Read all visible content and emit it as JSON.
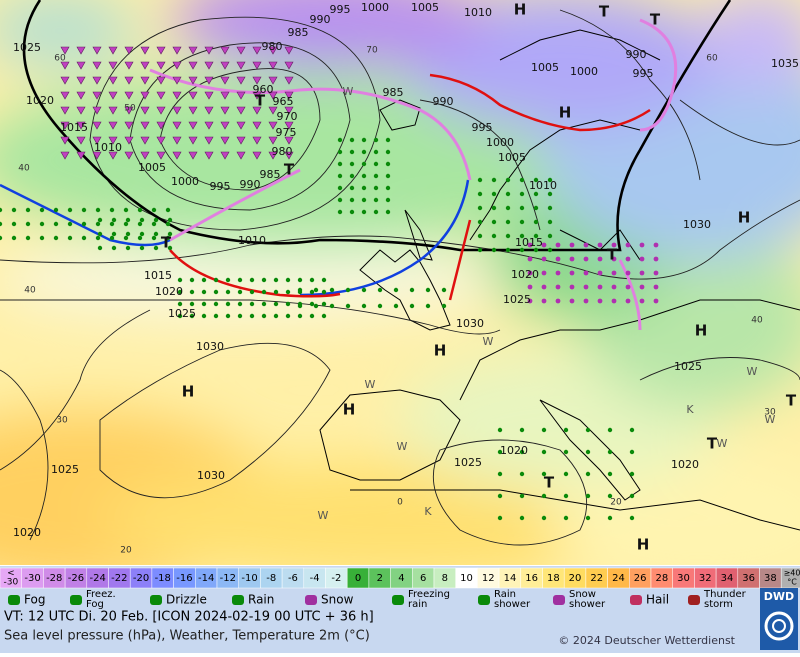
{
  "map": {
    "pressure_labels": [
      "995",
      "1000",
      "1005",
      "1010",
      "990",
      "1025",
      "985",
      "980",
      "960",
      "965",
      "970",
      "975",
      "980",
      "985",
      "990",
      "995",
      "1000",
      "1005",
      "1010",
      "1015",
      "1020",
      "985",
      "990",
      "995",
      "1000",
      "1005",
      "1010",
      "1005",
      "1000",
      "990",
      "995",
      "1035",
      "1010",
      "1015",
      "1020",
      "1025",
      "1030",
      "1015",
      "1020",
      "1025",
      "1030",
      "1030",
      "1025",
      "1020",
      "1025",
      "1030",
      "1025",
      "1020",
      "1020"
    ],
    "centers": [
      "H",
      "T",
      "T",
      "H",
      "T",
      "T",
      "T",
      "H",
      "T",
      "H",
      "H",
      "H",
      "H",
      "T",
      "T",
      "T",
      "H"
    ],
    "graticule_labels": [
      "60",
      "50",
      "40",
      "70",
      "60",
      "40",
      "30",
      "20",
      "40",
      "30",
      "20",
      "0"
    ],
    "weather_letters": [
      "W",
      "W",
      "W",
      "W",
      "K",
      "W",
      "W",
      "W",
      "K",
      "W"
    ]
  },
  "temperature_scale": {
    "low": {
      "top": "<",
      "bottom": "-30",
      "color": "#e6a8f5"
    },
    "values": [
      -30,
      -28,
      -26,
      -24,
      -22,
      -20,
      -18,
      -16,
      -14,
      -12,
      -10,
      -8,
      -6,
      -4,
      -2,
      0,
      2,
      4,
      6,
      8,
      10,
      12,
      14,
      16,
      18,
      20,
      22,
      24,
      26,
      28,
      30,
      32,
      34,
      36,
      38
    ],
    "colors": [
      "#dc9cf0",
      "#d08ce8",
      "#c080e6",
      "#b078e8",
      "#a078ee",
      "#8c80f8",
      "#7c8cff",
      "#7898ff",
      "#80a8fa",
      "#8cb8f5",
      "#9ec8f0",
      "#acd4f0",
      "#bcdcf0",
      "#c8e6f0",
      "#d6f0f0",
      "#38b038",
      "#5cc25c",
      "#82d282",
      "#a6e0a0",
      "#c8eec0",
      "#ffffff",
      "#fffae0",
      "#fff4b8",
      "#ffee98",
      "#ffe678",
      "#ffdc60",
      "#ffcc50",
      "#ffb848",
      "#ffa060",
      "#ff8c70",
      "#f87878",
      "#f06c78",
      "#e06070",
      "#d07070",
      "#b88888"
    ],
    "high": {
      "top": "≥40",
      "bottom": "°C",
      "color": "#b0b0b0"
    }
  },
  "weather_legend": [
    [
      "Fog"
    ],
    [
      "Freez.",
      "Fog"
    ],
    [
      "Drizzle"
    ],
    [
      "Rain"
    ],
    [
      "Snow"
    ],
    [
      "Freezing",
      "rain"
    ],
    [
      "Rain",
      "shower"
    ],
    [
      "Snow",
      "shower"
    ],
    [
      "Hail"
    ],
    [
      "Thunder",
      "storm"
    ]
  ],
  "footer": {
    "valid_time": "VT: 12 UTC Di.  20 Feb. [ICON 2024-02-19  00 UTC + 36 h]",
    "description": "Sea level pressure (hPa), Weather, Temperature 2m (°C)",
    "copyright": "© 2024 Deutscher Wetterdienst",
    "logo": "DWD"
  }
}
